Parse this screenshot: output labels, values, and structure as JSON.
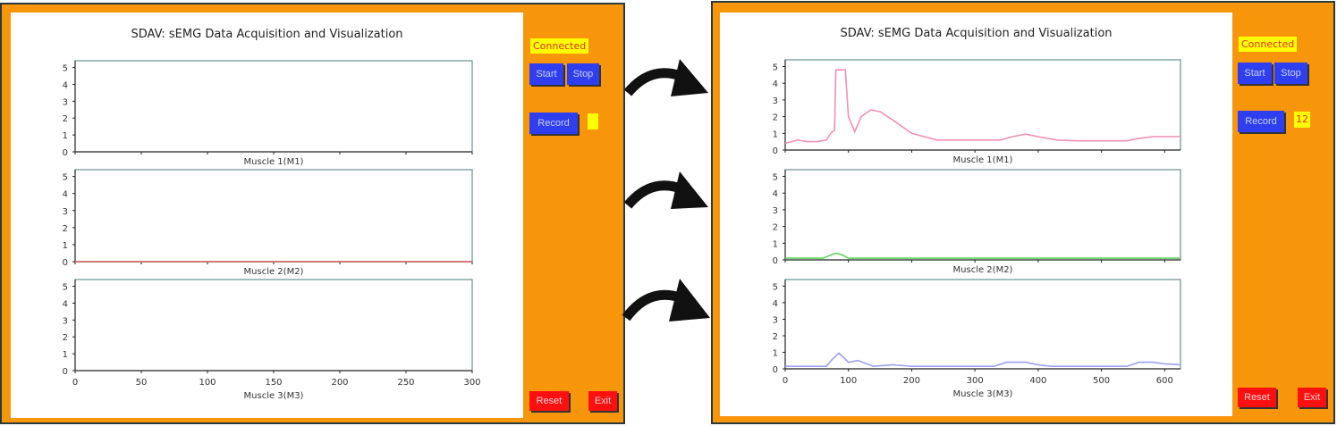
{
  "windows": [
    {
      "title": "SDAV: sEMG Data Acquisition and Visualization",
      "status": "Connected",
      "buttons": {
        "start": "Start",
        "stop": "Stop",
        "record": "Record",
        "reset": "Reset",
        "exit": "Exit"
      },
      "record_count": ""
    },
    {
      "title": "SDAV: sEMG Data Acquisition and Visualization",
      "status": "Connected",
      "buttons": {
        "start": "Start",
        "stop": "Stop",
        "record": "Record",
        "reset": "Reset",
        "exit": "Exit"
      },
      "record_count": "12"
    }
  ],
  "colors": {
    "frame": "#f7960a",
    "button": "#2f3ff0",
    "danger": "#ff1010",
    "status_bg": "#ffff00",
    "m1": "#f28fb5",
    "m2": "#5fd35f",
    "m3": "#9aa0f5"
  },
  "chart_data": [
    {
      "type": "line",
      "window": 0,
      "xlabel": "Muscle 1(M1)",
      "xlim": [
        0,
        300
      ],
      "ylim": [
        0,
        5.4
      ],
      "yticks": [
        0,
        1,
        2,
        3,
        4,
        5
      ],
      "xticks": [
        0,
        50,
        100,
        150,
        200,
        250,
        300
      ],
      "show_xtick_labels": false,
      "series": []
    },
    {
      "type": "line",
      "window": 0,
      "xlabel": "Muscle 2(M2)",
      "xlim": [
        0,
        300
      ],
      "ylim": [
        0,
        5.4
      ],
      "yticks": [
        0,
        1,
        2,
        3,
        4,
        5
      ],
      "xticks": [
        0,
        50,
        100,
        150,
        200,
        250,
        300
      ],
      "show_xtick_labels": false,
      "series": [
        {
          "name": "M2",
          "color": "#d06060",
          "x": [
            0,
            300
          ],
          "y": [
            0,
            0
          ]
        }
      ]
    },
    {
      "type": "line",
      "window": 0,
      "xlabel": "Muscle 3(M3)",
      "xlim": [
        0,
        300
      ],
      "ylim": [
        0,
        5.4
      ],
      "yticks": [
        0,
        1,
        2,
        3,
        4,
        5
      ],
      "xticks": [
        0,
        50,
        100,
        150,
        200,
        250,
        300
      ],
      "show_xtick_labels": true,
      "series": []
    },
    {
      "type": "line",
      "window": 1,
      "xlabel": "Muscle 1(M1)",
      "xlim": [
        0,
        625
      ],
      "ylim": [
        0,
        5.4
      ],
      "yticks": [
        0,
        1,
        2,
        3,
        4,
        5
      ],
      "xticks": [
        0,
        100,
        200,
        300,
        400,
        500,
        600
      ],
      "show_xtick_labels": false,
      "series": [
        {
          "name": "M1",
          "color": "#f28fb5",
          "x": [
            0,
            20,
            35,
            50,
            65,
            72,
            78,
            80,
            85,
            95,
            100,
            110,
            120,
            135,
            150,
            170,
            200,
            240,
            260,
            300,
            340,
            360,
            380,
            400,
            430,
            460,
            500,
            540,
            560,
            580,
            625
          ],
          "y": [
            0.4,
            0.6,
            0.5,
            0.5,
            0.6,
            1.0,
            1.2,
            4.8,
            4.8,
            4.8,
            2.0,
            1.1,
            2.0,
            2.4,
            2.3,
            1.8,
            1.0,
            0.6,
            0.6,
            0.6,
            0.6,
            0.8,
            0.95,
            0.8,
            0.6,
            0.55,
            0.55,
            0.55,
            0.7,
            0.8,
            0.8
          ]
        }
      ]
    },
    {
      "type": "line",
      "window": 1,
      "xlabel": "Muscle 2(M2)",
      "xlim": [
        0,
        625
      ],
      "ylim": [
        0,
        5.4
      ],
      "yticks": [
        0,
        1,
        2,
        3,
        4,
        5
      ],
      "xticks": [
        0,
        100,
        200,
        300,
        400,
        500,
        600
      ],
      "show_xtick_labels": false,
      "series": [
        {
          "name": "M2",
          "color": "#5fd35f",
          "x": [
            0,
            60,
            70,
            80,
            90,
            100,
            625
          ],
          "y": [
            0.1,
            0.1,
            0.25,
            0.4,
            0.3,
            0.1,
            0.1
          ]
        }
      ]
    },
    {
      "type": "line",
      "window": 1,
      "xlabel": "Muscle 3(M3)",
      "xlim": [
        0,
        625
      ],
      "ylim": [
        0,
        5.4
      ],
      "yticks": [
        0,
        1,
        2,
        3,
        4,
        5
      ],
      "xticks": [
        0,
        100,
        200,
        300,
        400,
        500,
        600
      ],
      "show_xtick_labels": true,
      "series": [
        {
          "name": "M3",
          "color": "#9aa0f5",
          "x": [
            0,
            65,
            75,
            85,
            100,
            115,
            140,
            170,
            200,
            330,
            350,
            380,
            400,
            420,
            540,
            560,
            580,
            600,
            625
          ],
          "y": [
            0.15,
            0.15,
            0.6,
            0.95,
            0.4,
            0.5,
            0.15,
            0.25,
            0.15,
            0.15,
            0.4,
            0.4,
            0.25,
            0.15,
            0.15,
            0.4,
            0.4,
            0.3,
            0.25
          ]
        }
      ]
    }
  ]
}
